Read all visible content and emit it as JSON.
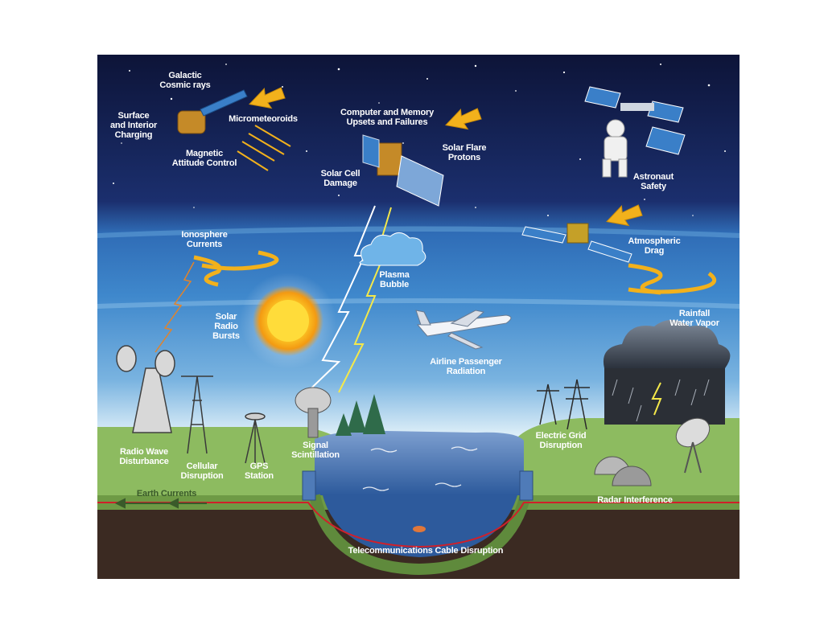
{
  "labels": {
    "galactic_cosmic_rays": "Galactic\nCosmic rays",
    "surface_interior_charging": "Surface\nand Interior\nCharging",
    "micrometeoroids": "Micrometeoroids",
    "magnetic_attitude_control": "Magnetic\nAttitude Control",
    "computer_memory": "Computer and Memory\nUpsets and Failures",
    "solar_flare_protons": "Solar Flare\nProtons",
    "solar_cell_damage": "Solar Cell\nDamage",
    "astronaut_safety": "Astronaut\nSafety",
    "ionosphere_currents": "Ionosphere\nCurrents",
    "atmospheric_drag": "Atmospheric\nDrag",
    "plasma_bubble": "Plasma\nBubble",
    "solar_radio_bursts": "Solar\nRadio\nBursts",
    "rainfall_water_vapor": "Rainfall\nWater Vapor",
    "airline_passenger_radiation": "Airline Passenger\nRadiation",
    "radio_wave_disturbance": "Radio Wave\nDisturbance",
    "cellular_disruption": "Cellular\nDisruption",
    "gps_station": "GPS\nStation",
    "signal_scintillation": "Signal\nScintillation",
    "electric_grid_disruption": "Electric Grid\nDisruption",
    "radar_interference": "Radar Interference",
    "earth_currents": "Earth Currents",
    "telecom_cable_disruption": "Telecommunications Cable Disruption"
  },
  "colors": {
    "space_dark": "#0e1640",
    "atmosphere_blue": "#3a84c8",
    "ground_green": "#8dbb60",
    "soil": "#3b2a22",
    "water": "#3d6fb0",
    "arrow_orange": "#f2b11c",
    "cable_red": "#d0202a"
  }
}
